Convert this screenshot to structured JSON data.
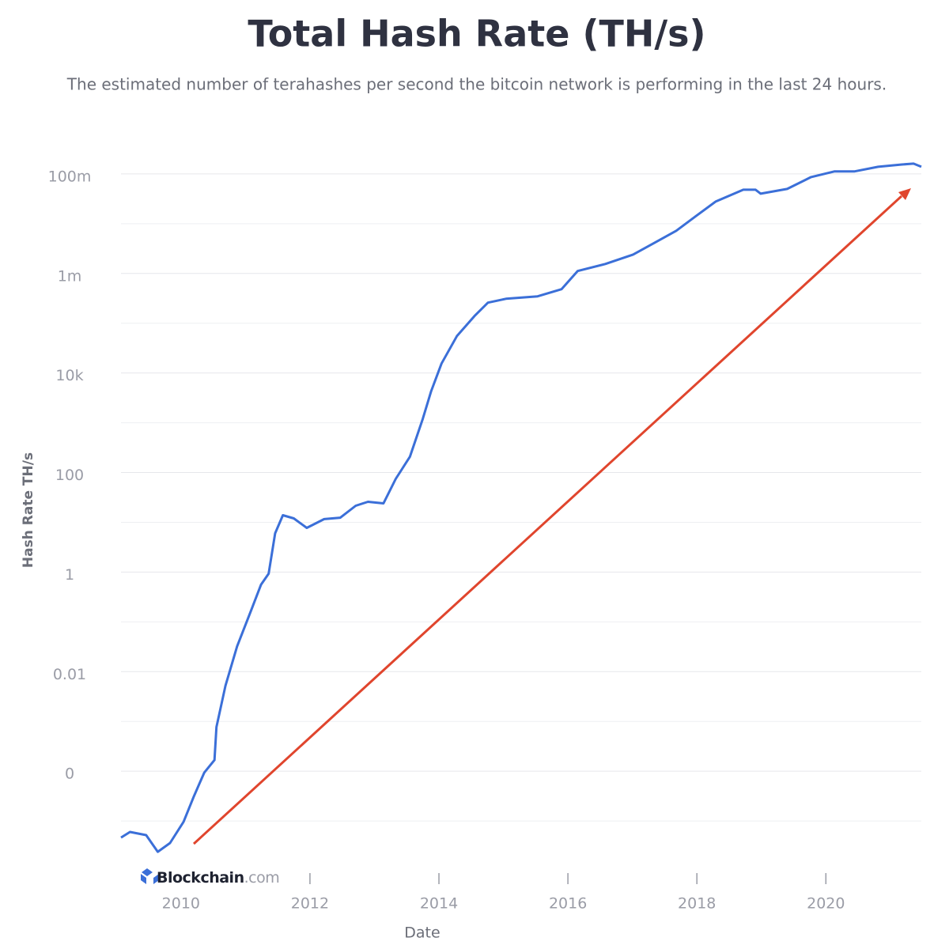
{
  "chart_data": {
    "type": "line",
    "title": "Total Hash Rate (TH/s)",
    "subtitle": "The estimated number of terahashes per second the bitcoin network is performing in the last 24 hours.",
    "x_label": "Date",
    "y_label": "Hash Rate TH/s",
    "watermark": [
      "Blockchain",
      ".com"
    ],
    "log_y": true,
    "grid": true,
    "xlim": [
      2009.07,
      2021.48
    ],
    "ylim": [
      1e-06,
      1000000000
    ],
    "xticks": [
      2010,
      2012,
      2014,
      2016,
      2018,
      2020
    ],
    "yticks": [
      {
        "value": 100000000,
        "label": "100m"
      },
      {
        "value": 1000000,
        "label": "1m"
      },
      {
        "value": 10000,
        "label": "10k"
      },
      100,
      1,
      0.01,
      {
        "value": 0.0001,
        "label": "0"
      }
    ],
    "yminor": [
      10000000,
      100000,
      1000,
      10,
      0.1,
      0.001,
      1e-05
    ],
    "series": [
      {
        "name": "Hash Rate",
        "color": "#3b6fd8",
        "x": [
          2009.07,
          2009.21,
          2009.46,
          2009.64,
          2009.83,
          2010.04,
          2010.2,
          2010.36,
          2010.52,
          2010.55,
          2010.69,
          2010.87,
          2011.09,
          2011.24,
          2011.36,
          2011.46,
          2011.58,
          2011.75,
          2011.95,
          2012.22,
          2012.47,
          2012.71,
          2012.9,
          2013.14,
          2013.33,
          2013.55,
          2013.75,
          2013.88,
          2014.04,
          2014.28,
          2014.55,
          2014.76,
          2015.04,
          2015.53,
          2015.9,
          2016.15,
          2016.58,
          2017.01,
          2017.37,
          2017.68,
          2017.99,
          2018.29,
          2018.72,
          2018.91,
          2018.99,
          2019.4,
          2019.77,
          2020.13,
          2020.44,
          2020.81,
          2021.18,
          2021.36,
          2021.48
        ],
        "values": [
          4.64e-06,
          6e-06,
          5.18e-06,
          2.4e-06,
          3.6e-06,
          9.6e-06,
          3.1e-05,
          9.3e-05,
          0.000167,
          0.00077,
          0.0052,
          0.0322,
          0.173,
          0.557,
          0.93,
          6.0,
          13.9,
          12.0,
          7.74,
          11.6,
          12.4,
          21.5,
          25.9,
          24.0,
          74.6,
          207,
          1200,
          4320,
          15500,
          55700,
          139000,
          259000,
          310000,
          347000,
          482000,
          1120000,
          1550000,
          2400000,
          4320000,
          7200000,
          14400000,
          27800000,
          48200000,
          48200000,
          40100000,
          49900000,
          86500000,
          112000000,
          112000000,
          139000000,
          155000000,
          161000000,
          139000000
        ]
      }
    ]
  }
}
